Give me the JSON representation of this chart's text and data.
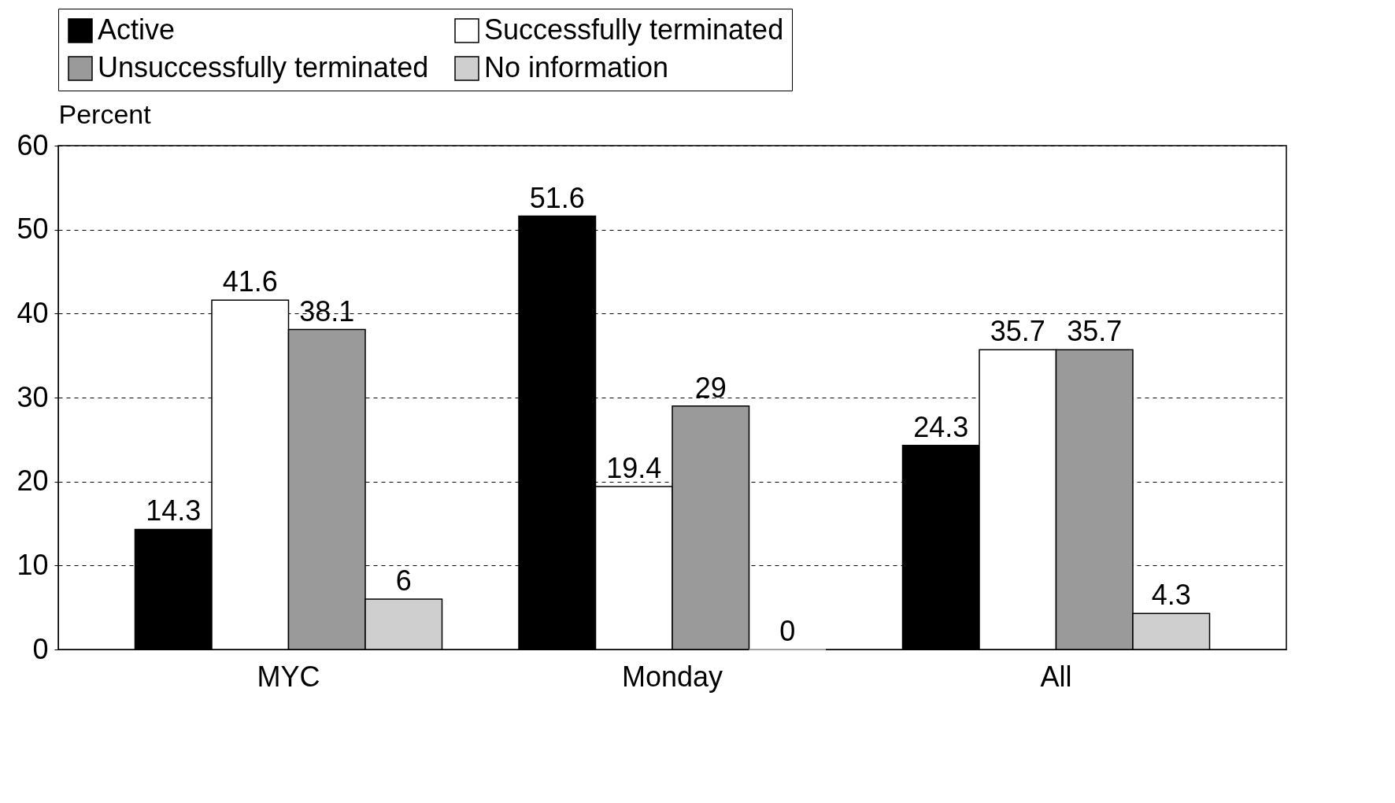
{
  "chart_data": {
    "type": "bar",
    "ylabel": "Percent",
    "categories": [
      "MYC",
      "Monday",
      "All"
    ],
    "series": [
      {
        "name": "Active",
        "color": "#000000",
        "values": [
          14.3,
          51.6,
          24.3
        ]
      },
      {
        "name": "Successfully terminated",
        "color": "#ffffff",
        "values": [
          41.6,
          19.4,
          35.7
        ]
      },
      {
        "name": "Unsuccessfully terminated",
        "color": "#9a9a9a",
        "values": [
          38.1,
          29,
          35.7
        ]
      },
      {
        "name": "No information",
        "color": "#cfcfcf",
        "values": [
          6,
          0,
          4.3
        ]
      }
    ],
    "ylim": [
      0,
      60
    ],
    "yticks": [
      0,
      10,
      20,
      30,
      40,
      50,
      60
    ],
    "grid": "y",
    "legend": "top",
    "data_labels": true
  }
}
